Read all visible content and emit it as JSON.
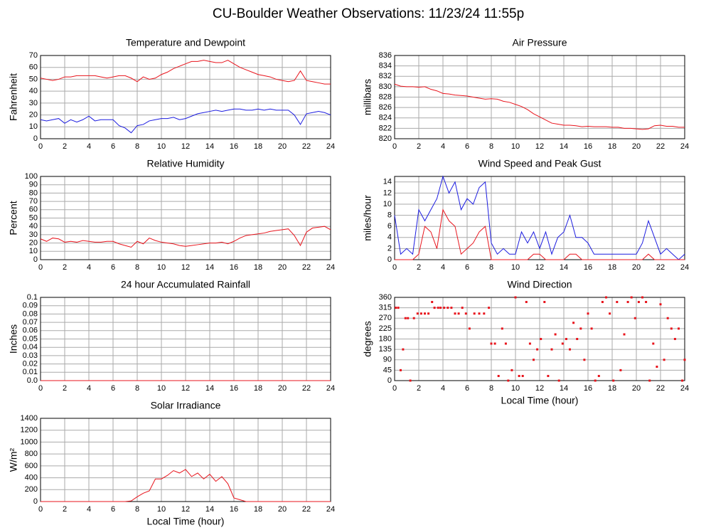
{
  "title": "CU-Boulder Weather Observations: 11/23/24 11:55p",
  "chart_data": [
    {
      "type": "line",
      "title": "Temperature and Dewpoint",
      "ylabel": "Fahrenheit",
      "grid": true,
      "xlim": [
        0,
        24
      ],
      "xticks": [
        0,
        2,
        4,
        6,
        8,
        10,
        12,
        14,
        16,
        18,
        20,
        22,
        24
      ],
      "ylim": [
        0,
        70
      ],
      "yticks": [
        0,
        10,
        20,
        30,
        40,
        50,
        60,
        70
      ],
      "x": [
        0,
        0.5,
        1,
        1.5,
        2,
        2.5,
        3,
        3.5,
        4,
        4.5,
        5,
        5.5,
        6,
        6.5,
        7,
        7.5,
        8,
        8.5,
        9,
        9.5,
        10,
        10.5,
        11,
        11.5,
        12,
        12.5,
        13,
        13.5,
        14,
        14.5,
        15,
        15.5,
        16,
        16.5,
        17,
        17.5,
        18,
        18.5,
        19,
        19.5,
        20,
        20.5,
        21,
        21.5,
        22,
        22.5,
        23,
        23.5,
        24
      ],
      "series": [
        {
          "color": "#e8141c",
          "values": [
            51,
            50,
            49,
            50,
            52,
            52,
            53,
            53,
            53,
            53,
            52,
            51,
            52,
            53,
            53,
            51,
            48,
            52,
            50,
            51,
            54,
            56,
            59,
            61,
            63,
            65,
            65,
            66,
            65,
            64,
            64,
            66,
            63,
            60,
            58,
            56,
            54,
            53,
            52,
            50,
            49,
            48,
            49,
            57,
            49,
            48,
            47,
            46,
            46
          ]
        },
        {
          "color": "#1c1ce0",
          "values": [
            16,
            15,
            16,
            17,
            13,
            16,
            14,
            16,
            19,
            15,
            16,
            16,
            16,
            11,
            9,
            5,
            11,
            12,
            15,
            16,
            17,
            17,
            18,
            16,
            17,
            19,
            21,
            22,
            23,
            24,
            23,
            24,
            25,
            25,
            24,
            24,
            25,
            24,
            25,
            24,
            24,
            24,
            20,
            12,
            21,
            22,
            23,
            22,
            20
          ]
        }
      ]
    },
    {
      "type": "line",
      "title": "Air Pressure",
      "ylabel": "millibars",
      "grid": true,
      "xlim": [
        0,
        24
      ],
      "xticks": [
        0,
        2,
        4,
        6,
        8,
        10,
        12,
        14,
        16,
        18,
        20,
        22,
        24
      ],
      "ylim": [
        820,
        836
      ],
      "yticks": [
        820,
        822,
        824,
        826,
        828,
        830,
        832,
        834,
        836
      ],
      "x": [
        0,
        0.5,
        1,
        1.5,
        2,
        2.5,
        3,
        3.5,
        4,
        4.5,
        5,
        5.5,
        6,
        6.5,
        7,
        7.5,
        8,
        8.5,
        9,
        9.5,
        10,
        10.5,
        11,
        11.5,
        12,
        12.5,
        13,
        13.5,
        14,
        14.5,
        15,
        15.5,
        16,
        16.5,
        17,
        17.5,
        18,
        18.5,
        19,
        19.5,
        20,
        20.5,
        21,
        21.5,
        22,
        22.5,
        23,
        23.5,
        24
      ],
      "series": [
        {
          "color": "#e8141c",
          "values": [
            830.5,
            830.1,
            830,
            830,
            829.9,
            830,
            829.5,
            829.2,
            828.7,
            828.6,
            828.4,
            828.3,
            828.2,
            828,
            827.8,
            827.6,
            827.7,
            827.6,
            827.2,
            827,
            826.6,
            826.2,
            825.6,
            824.8,
            824.2,
            823.6,
            823,
            822.8,
            822.6,
            822.6,
            822.5,
            822.3,
            822.4,
            822.3,
            822.3,
            822.3,
            822.2,
            822.2,
            822,
            822,
            821.9,
            821.8,
            821.9,
            822.5,
            822.6,
            822.4,
            822.4,
            822.2,
            822.2
          ]
        }
      ]
    },
    {
      "type": "line",
      "title": "Relative Humidity",
      "ylabel": "Percent",
      "grid": true,
      "xlim": [
        0,
        24
      ],
      "xticks": [
        0,
        2,
        4,
        6,
        8,
        10,
        12,
        14,
        16,
        18,
        20,
        22,
        24
      ],
      "ylim": [
        0,
        100
      ],
      "yticks": [
        0,
        10,
        20,
        30,
        40,
        50,
        60,
        70,
        80,
        90,
        100
      ],
      "x": [
        0,
        0.5,
        1,
        1.5,
        2,
        2.5,
        3,
        3.5,
        4,
        4.5,
        5,
        5.5,
        6,
        6.5,
        7,
        7.5,
        8,
        8.5,
        9,
        9.5,
        10,
        10.5,
        11,
        11.5,
        12,
        12.5,
        13,
        13.5,
        14,
        14.5,
        15,
        15.5,
        16,
        16.5,
        17,
        17.5,
        18,
        18.5,
        19,
        19.5,
        20,
        20.5,
        21,
        21.5,
        22,
        22.5,
        23,
        23.5,
        24
      ],
      "series": [
        {
          "color": "#e8141c",
          "values": [
            25,
            22,
            26,
            25,
            21,
            22,
            21,
            23,
            22,
            21,
            21,
            22,
            22,
            19,
            17,
            15,
            22,
            19,
            26,
            23,
            21,
            20,
            19,
            17,
            16,
            17,
            18,
            19,
            20,
            20,
            21,
            19,
            22,
            26,
            29,
            30,
            31,
            32,
            34,
            35,
            36,
            37,
            29,
            17,
            33,
            38,
            39,
            40,
            36
          ]
        }
      ]
    },
    {
      "type": "line",
      "title": "Wind Speed and Peak Gust",
      "ylabel": "miles/hour",
      "grid": true,
      "xlim": [
        0,
        24
      ],
      "xticks": [
        0,
        2,
        4,
        6,
        8,
        10,
        12,
        14,
        16,
        18,
        20,
        22,
        24
      ],
      "ylim": [
        0,
        15
      ],
      "yticks": [
        0,
        2,
        4,
        6,
        8,
        10,
        12,
        14
      ],
      "x": [
        0,
        0.5,
        1,
        1.5,
        2,
        2.5,
        3,
        3.5,
        4,
        4.5,
        5,
        5.5,
        6,
        6.5,
        7,
        7.5,
        8,
        8.5,
        9,
        9.5,
        10,
        10.5,
        11,
        11.5,
        12,
        12.5,
        13,
        13.5,
        14,
        14.5,
        15,
        15.5,
        16,
        16.5,
        17,
        17.5,
        18,
        18.5,
        19,
        19.5,
        20,
        20.5,
        21,
        21.5,
        22,
        22.5,
        23,
        23.5,
        24
      ],
      "series": [
        {
          "color": "#1c1ce0",
          "values": [
            8,
            1,
            2,
            1,
            9,
            7,
            9,
            11,
            15,
            12,
            14,
            9,
            11,
            10,
            13,
            14,
            3,
            1,
            2,
            1,
            1,
            5,
            3,
            5,
            2,
            5,
            1,
            4,
            5,
            8,
            4,
            4,
            3,
            1,
            1,
            1,
            1,
            1,
            1,
            1,
            1,
            3,
            7,
            4,
            1,
            2,
            1,
            0,
            1
          ]
        },
        {
          "color": "#e8141c",
          "values": [
            0,
            0,
            0,
            0,
            1,
            6,
            5,
            2,
            9,
            7,
            6,
            1,
            2,
            3,
            5,
            6,
            0,
            0,
            0,
            0,
            0,
            0,
            0,
            1,
            1,
            0,
            0,
            0,
            0,
            1,
            1,
            0,
            0,
            0,
            0,
            0,
            0,
            0,
            0,
            0,
            0,
            0,
            1,
            0,
            0,
            0,
            0,
            0,
            0
          ]
        }
      ]
    },
    {
      "type": "line",
      "title": "24 hour Accumulated Rainfall",
      "ylabel": "Inches",
      "grid": true,
      "xlim": [
        0,
        24
      ],
      "xticks": [
        0,
        2,
        4,
        6,
        8,
        10,
        12,
        14,
        16,
        18,
        20,
        22,
        24
      ],
      "ylim": [
        0,
        0.1
      ],
      "yticks": [
        {
          "value": 0,
          "label": "0.0"
        },
        0.01,
        0.02,
        0.03,
        0.04,
        0.05,
        0.06,
        0.07,
        0.08,
        0.09,
        0.1
      ],
      "x": [
        0,
        24
      ],
      "series": [
        {
          "color": "#e8141c",
          "values": [
            0,
            0
          ]
        }
      ]
    },
    {
      "type": "scatter",
      "title": "Wind Direction",
      "ylabel": "degrees",
      "xlabel": "Local Time (hour)",
      "grid": true,
      "xlim": [
        0,
        24
      ],
      "xticks": [
        0,
        2,
        4,
        6,
        8,
        10,
        12,
        14,
        16,
        18,
        20,
        22,
        24
      ],
      "ylim": [
        0,
        360
      ],
      "yticks": [
        0,
        45,
        90,
        135,
        180,
        225,
        270,
        315,
        360
      ],
      "x": [
        0.1,
        0.3,
        0.5,
        0.7,
        0.9,
        1.1,
        1.3,
        1.6,
        1.9,
        2.2,
        2.5,
        2.8,
        3.1,
        3.3,
        3.6,
        3.8,
        4.1,
        4.4,
        4.7,
        5.0,
        5.3,
        5.6,
        5.9,
        6.2,
        6.6,
        7.0,
        7.4,
        7.8,
        8.0,
        8.3,
        8.6,
        8.9,
        9.2,
        9.4,
        9.7,
        10.0,
        10.3,
        10.6,
        10.9,
        11.2,
        11.5,
        11.8,
        12.1,
        12.4,
        12.7,
        13.0,
        13.3,
        13.6,
        13.9,
        14.2,
        14.5,
        14.8,
        15.1,
        15.4,
        15.7,
        16.0,
        16.3,
        16.6,
        16.9,
        17.2,
        17.5,
        17.8,
        18.1,
        18.4,
        18.7,
        19.0,
        19.3,
        19.6,
        19.9,
        20.2,
        20.5,
        20.8,
        21.1,
        21.4,
        21.7,
        22.0,
        22.3,
        22.6,
        22.9,
        23.2,
        23.5,
        23.8,
        24.0
      ],
      "series": [
        {
          "color": "#e8141c",
          "values": [
            315,
            315,
            45,
            135,
            270,
            270,
            0,
            270,
            290,
            290,
            290,
            290,
            340,
            315,
            315,
            315,
            315,
            315,
            315,
            290,
            290,
            315,
            290,
            225,
            290,
            290,
            290,
            315,
            160,
            160,
            20,
            225,
            160,
            0,
            45,
            360,
            20,
            20,
            340,
            160,
            90,
            135,
            180,
            340,
            20,
            135,
            200,
            0,
            160,
            180,
            135,
            250,
            180,
            225,
            90,
            290,
            225,
            0,
            20,
            340,
            360,
            290,
            0,
            340,
            45,
            200,
            340,
            360,
            270,
            340,
            360,
            340,
            0,
            160,
            60,
            330,
            90,
            270,
            225,
            180,
            225,
            0,
            90
          ]
        }
      ]
    },
    {
      "type": "line",
      "title": "Solar Irradiance",
      "ylabel": "W/m²",
      "xlabel": "Local Time (hour)",
      "grid": true,
      "xlim": [
        0,
        24
      ],
      "xticks": [
        0,
        2,
        4,
        6,
        8,
        10,
        12,
        14,
        16,
        18,
        20,
        22,
        24
      ],
      "ylim": [
        0,
        1400
      ],
      "yticks": [
        0,
        200,
        400,
        600,
        800,
        1000,
        1200,
        1400
      ],
      "x": [
        0,
        0.5,
        1,
        1.5,
        2,
        2.5,
        3,
        3.5,
        4,
        4.5,
        5,
        5.5,
        6,
        6.5,
        7,
        7.5,
        8,
        8.5,
        9,
        9.5,
        10,
        10.5,
        11,
        11.5,
        12,
        12.5,
        13,
        13.5,
        14,
        14.5,
        15,
        15.5,
        16,
        16.5,
        17,
        17.5,
        18,
        18.5,
        19,
        19.5,
        20,
        20.5,
        21,
        21.5,
        22,
        22.5,
        23,
        23.5,
        24
      ],
      "series": [
        {
          "color": "#e8141c",
          "values": [
            0,
            0,
            0,
            0,
            0,
            0,
            0,
            0,
            0,
            0,
            0,
            0,
            0,
            0,
            0,
            10,
            80,
            140,
            180,
            380,
            380,
            440,
            520,
            480,
            540,
            420,
            480,
            380,
            460,
            340,
            420,
            300,
            60,
            30,
            0,
            0,
            0,
            0,
            0,
            0,
            0,
            0,
            0,
            0,
            0,
            0,
            0,
            0,
            0
          ]
        }
      ]
    }
  ]
}
